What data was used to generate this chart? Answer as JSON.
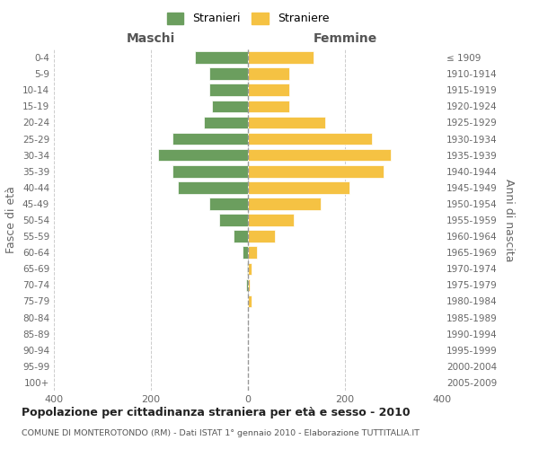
{
  "age_groups": [
    "0-4",
    "5-9",
    "10-14",
    "15-19",
    "20-24",
    "25-29",
    "30-34",
    "35-39",
    "40-44",
    "45-49",
    "50-54",
    "55-59",
    "60-64",
    "65-69",
    "70-74",
    "75-79",
    "80-84",
    "85-89",
    "90-94",
    "95-99",
    "100+"
  ],
  "birth_years": [
    "2005-2009",
    "2000-2004",
    "1995-1999",
    "1990-1994",
    "1985-1989",
    "1980-1984",
    "1975-1979",
    "1970-1974",
    "1965-1969",
    "1960-1964",
    "1955-1959",
    "1950-1954",
    "1945-1949",
    "1940-1944",
    "1935-1939",
    "1930-1934",
    "1925-1929",
    "1920-1924",
    "1915-1919",
    "1910-1914",
    "≤ 1909"
  ],
  "maschi": [
    110,
    80,
    80,
    75,
    90,
    155,
    185,
    155,
    145,
    80,
    60,
    30,
    12,
    2,
    3,
    0,
    0,
    0,
    0,
    0,
    0
  ],
  "femmine": [
    135,
    85,
    85,
    85,
    160,
    255,
    295,
    280,
    210,
    150,
    95,
    55,
    18,
    8,
    3,
    8,
    0,
    0,
    0,
    0,
    0
  ],
  "color_maschi": "#6b9e5e",
  "color_femmine": "#f5c243",
  "title": "Popolazione per cittadinanza straniera per età e sesso - 2010",
  "subtitle": "COMUNE DI MONTEROTONDO (RM) - Dati ISTAT 1° gennaio 2010 - Elaborazione TUTTITALIA.IT",
  "ylabel_left": "Fasce di età",
  "ylabel_right": "Anni di nascita",
  "xlabel_maschi": "Maschi",
  "xlabel_femmine": "Femmine",
  "legend_maschi": "Stranieri",
  "legend_femmine": "Straniere",
  "xlim": 400,
  "background_color": "#ffffff",
  "grid_color": "#cccccc"
}
